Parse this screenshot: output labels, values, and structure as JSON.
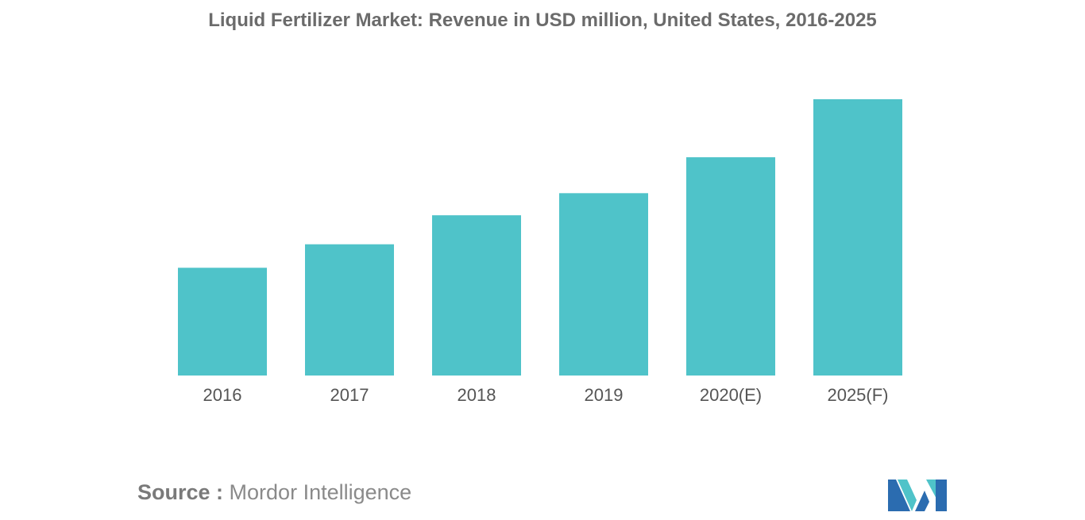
{
  "chart_data": {
    "type": "bar",
    "title": "Liquid Fertilizer Market: Revenue in USD million, United States, 2016-2025",
    "categories": [
      "2016",
      "2017",
      "2018",
      "2019",
      "2020(E)",
      "2025(F)"
    ],
    "values": [
      39,
      47.5,
      58,
      66,
      79,
      100
    ],
    "xlabel": "",
    "ylabel": "",
    "ylim": [
      0,
      100
    ],
    "grid": false,
    "legend": "none",
    "bar_color": "#4fc3c9"
  },
  "footer": {
    "source_label": "Source :",
    "source_text": "Mordor Intelligence"
  },
  "logo": {
    "icon": "mordor-intelligence-logo-icon",
    "colors": [
      "#2b6cb0",
      "#4fc3c9"
    ]
  }
}
